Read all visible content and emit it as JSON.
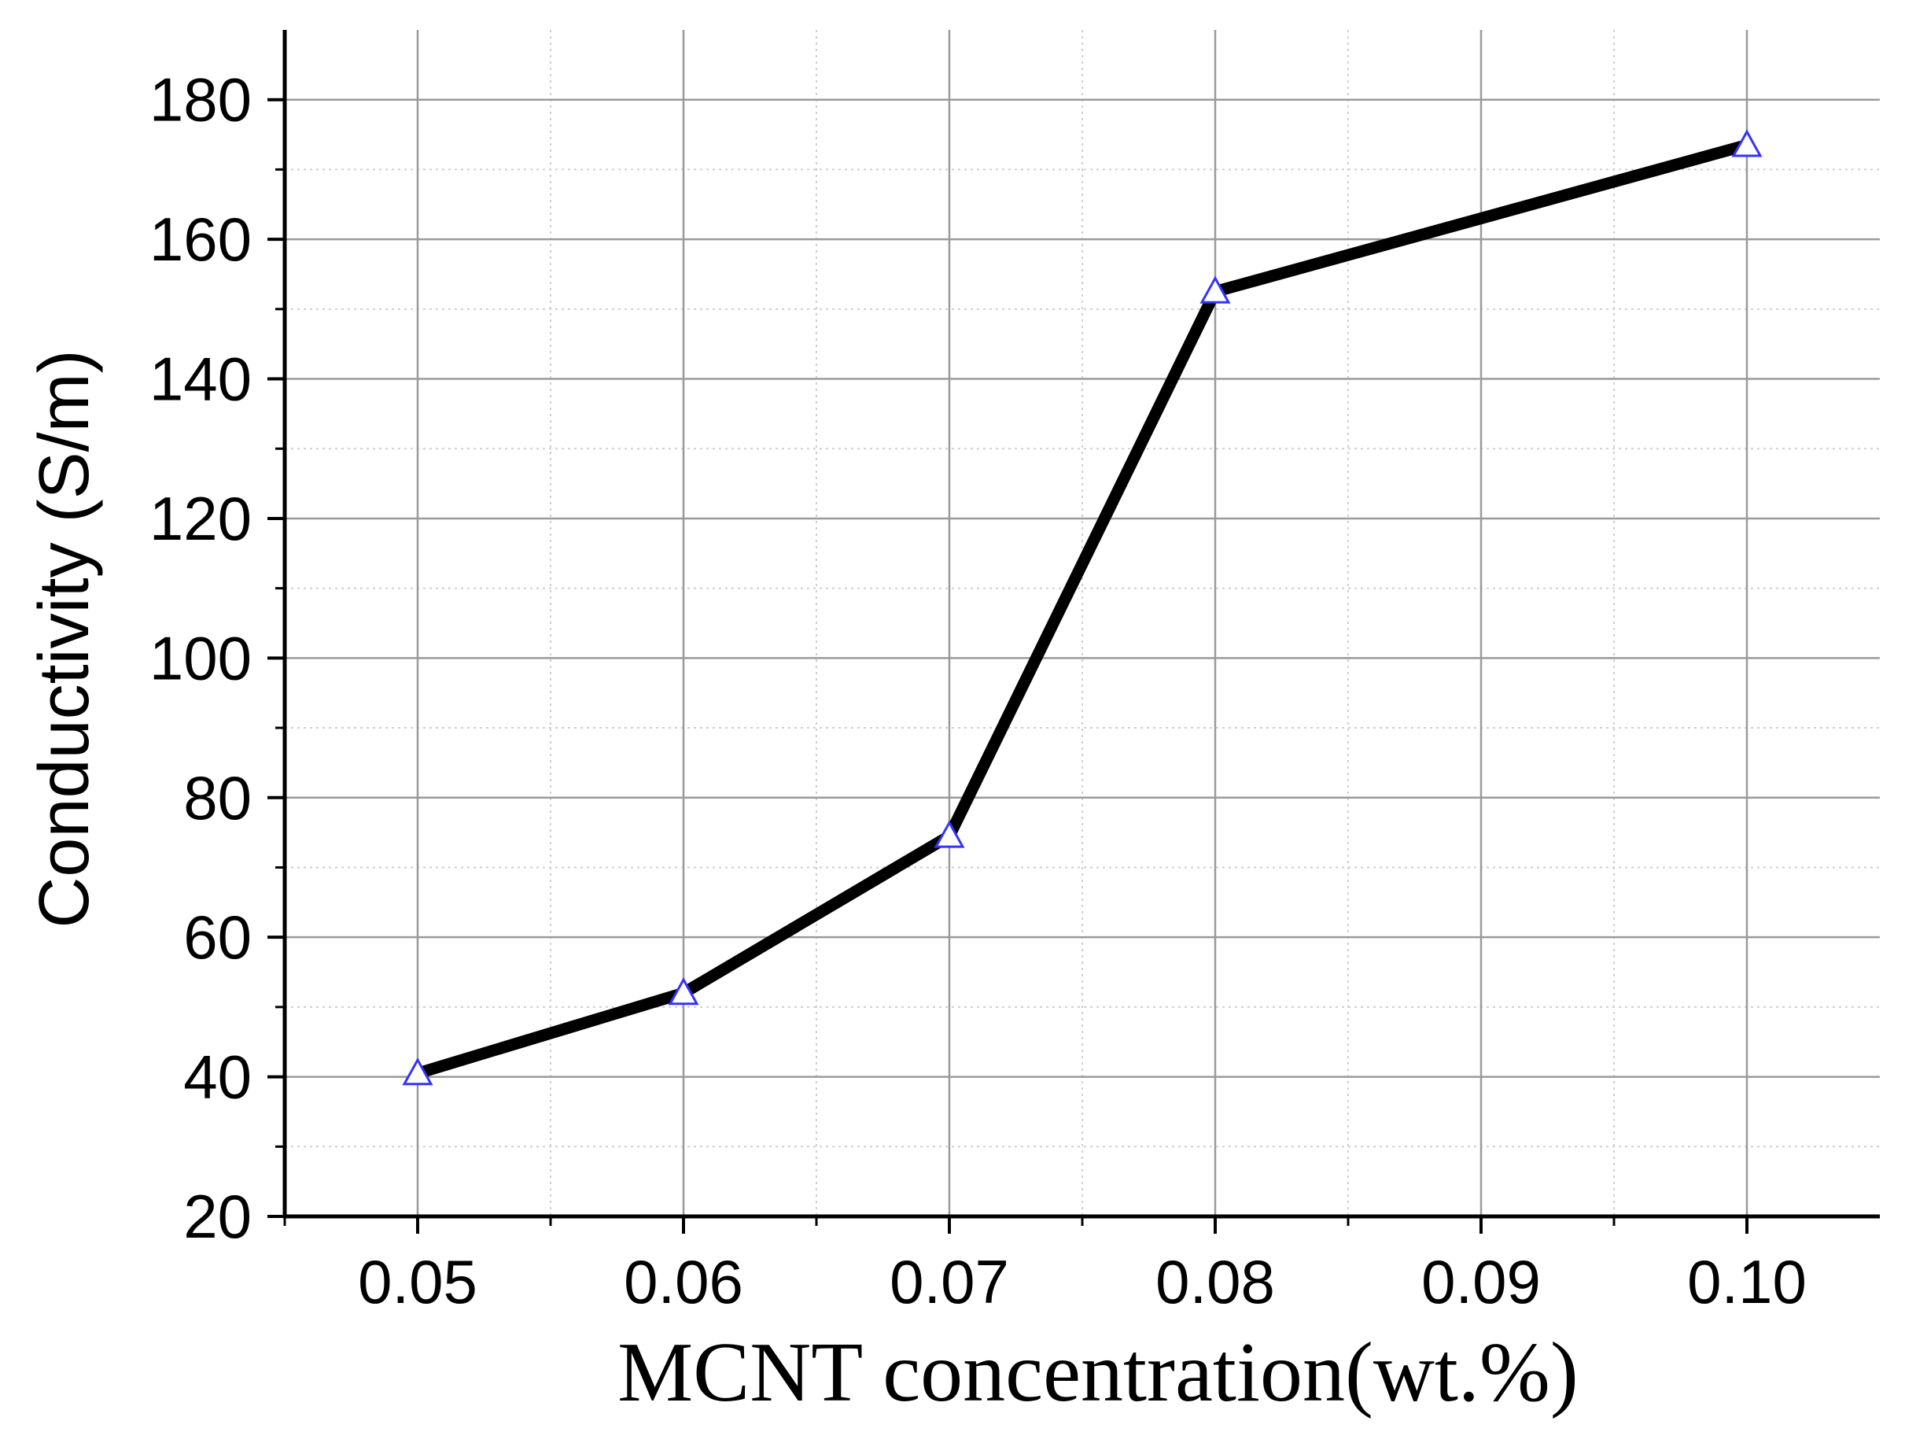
{
  "chart_data": {
    "type": "line",
    "title": "",
    "xlabel": "MCNT concentration(wt.%)",
    "ylabel": "Conductivity (S/m)",
    "xlim": [
      0.045,
      0.105
    ],
    "ylim": [
      20,
      190
    ],
    "x_ticks": [
      "0.05",
      "0.06",
      "0.07",
      "0.08",
      "0.09",
      "0.10"
    ],
    "x_tick_values": [
      0.05,
      0.06,
      0.07,
      0.08,
      0.09,
      0.1
    ],
    "y_ticks": [
      "20",
      "40",
      "60",
      "80",
      "100",
      "120",
      "140",
      "160",
      "180"
    ],
    "y_tick_values": [
      20,
      40,
      60,
      80,
      100,
      120,
      140,
      160,
      180
    ],
    "grid": true,
    "legend": "none",
    "series": [
      {
        "x": [
          0.05,
          0.06,
          0.07,
          0.08,
          0.1
        ],
        "values": [
          40.5,
          52,
          74.5,
          152.5,
          173.5
        ],
        "line_color": "#000000",
        "marker": "triangle-open",
        "marker_color": "#3333ff"
      }
    ]
  }
}
